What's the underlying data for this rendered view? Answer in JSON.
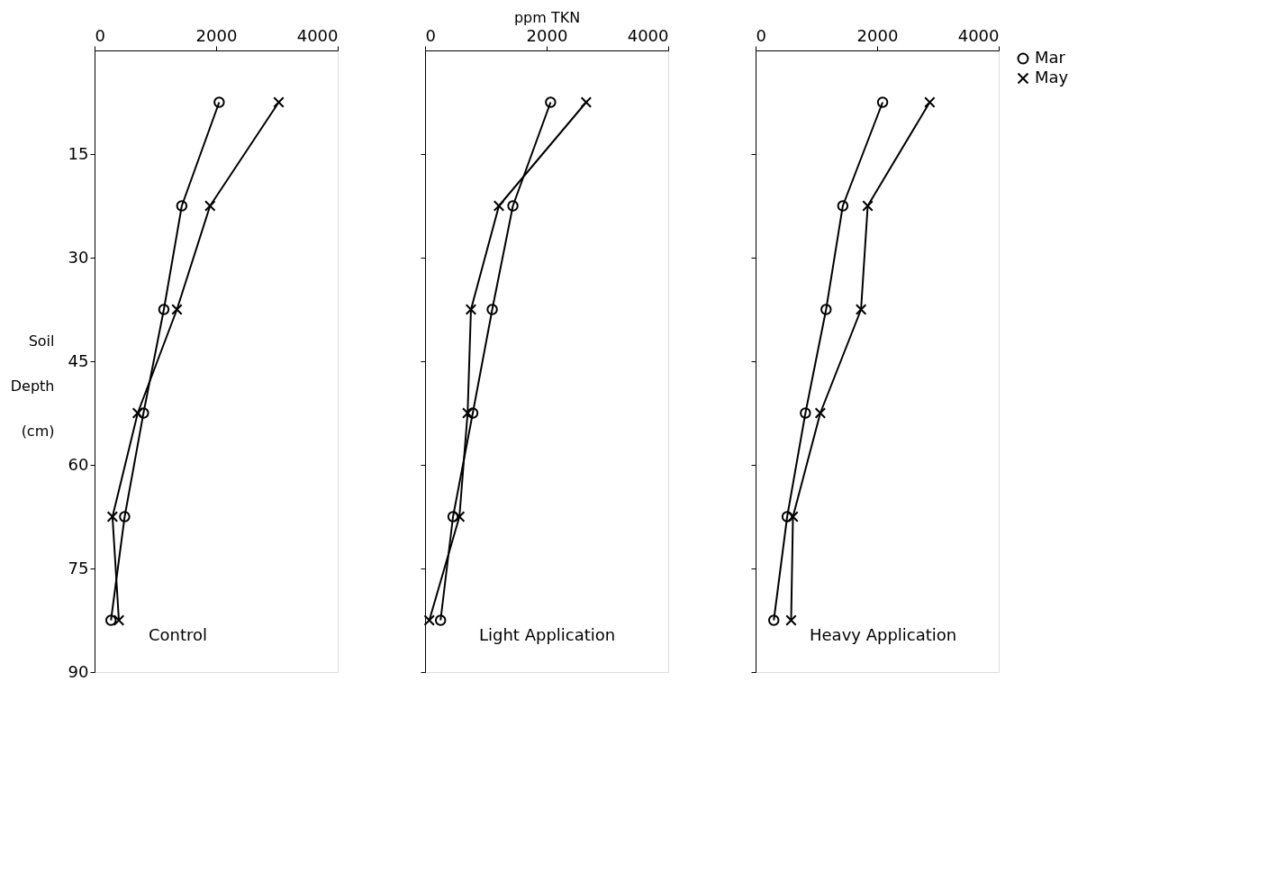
{
  "chart_data": [
    {
      "type": "line",
      "ylabel": "Soil Depth (cm)",
      "xlim": [
        0,
        4000
      ],
      "xticks": [
        0,
        2000,
        4000
      ],
      "ylim": [
        90,
        0
      ],
      "yticks": [
        15,
        30,
        45,
        60,
        75,
        90
      ],
      "grid": false,
      "legend": false,
      "annotations": [
        "Control"
      ],
      "series": [
        {
          "color": "#000000",
          "marker": "circle",
          "x": [
            2050,
            1435,
            1140,
            805,
            495,
            270
          ],
          "values": [
            7.5,
            22.5,
            37.5,
            52.5,
            67.5,
            82.5
          ]
        },
        {
          "color": "#000000",
          "marker": "cross",
          "x": [
            3030,
            1900,
            1355,
            710,
            295,
            400
          ],
          "values": [
            7.5,
            22.5,
            37.5,
            52.5,
            67.5,
            82.5
          ]
        }
      ]
    },
    {
      "type": "line",
      "xlabel": "ppm TKN",
      "xlim": [
        0,
        4000
      ],
      "xticks": [
        0,
        2000,
        4000
      ],
      "ylim": [
        90,
        0
      ],
      "yticks": [
        15,
        30,
        45,
        60,
        75,
        90
      ],
      "tick_labels": "x",
      "grid": false,
      "legend": false,
      "annotations": [
        "Light Application"
      ],
      "series": [
        {
          "color": "#000000",
          "marker": "circle",
          "x": [
            2065,
            1445,
            1105,
            785,
            460,
            255
          ],
          "values": [
            7.5,
            22.5,
            37.5,
            52.5,
            67.5,
            82.5
          ]
        },
        {
          "color": "#000000",
          "marker": "cross",
          "x": [
            2650,
            1215,
            755,
            700,
            565,
            70
          ],
          "values": [
            7.5,
            22.5,
            37.5,
            52.5,
            67.5,
            82.5
          ]
        }
      ]
    },
    {
      "type": "line",
      "xlim": [
        0,
        4000
      ],
      "xticks": [
        0,
        2000,
        4000
      ],
      "ylim": [
        90,
        0
      ],
      "yticks": [
        15,
        30,
        45,
        60,
        75,
        90
      ],
      "tick_labels": "x",
      "grid": false,
      "legend": "right",
      "annotations": [
        "Heavy Application"
      ],
      "series": [
        {
          "name": "Mar",
          "color": "#000000",
          "marker": "circle",
          "x": [
            2090,
            1435,
            1160,
            820,
            520,
            300
          ],
          "values": [
            7.5,
            22.5,
            37.5,
            52.5,
            67.5,
            82.5
          ]
        },
        {
          "name": "May",
          "color": "#000000",
          "marker": "cross",
          "x": [
            2865,
            1845,
            1735,
            1065,
            615,
            585
          ],
          "values": [
            7.5,
            22.5,
            37.5,
            52.5,
            67.5,
            82.5
          ]
        }
      ]
    }
  ]
}
